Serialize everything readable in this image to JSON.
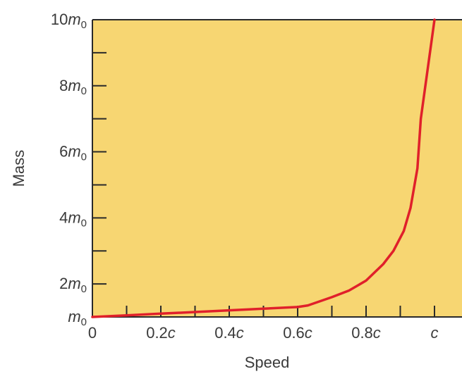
{
  "chart_data": {
    "type": "line",
    "title": "",
    "xlabel": "Speed",
    "ylabel": "Mass",
    "xlim": [
      0,
      1.05
    ],
    "ylim": [
      1,
      10
    ],
    "x_ticks": [
      {
        "value": 0,
        "label": "0",
        "num": "0",
        "sub": "",
        "italic": ""
      },
      {
        "value": 0.2,
        "label": "0.2c",
        "num": "0.2",
        "sub": "",
        "italic": "c"
      },
      {
        "value": 0.4,
        "label": "0.4c",
        "num": "0.4",
        "sub": "",
        "italic": "c"
      },
      {
        "value": 0.6,
        "label": "0.6c",
        "num": "0.6",
        "sub": "",
        "italic": "c"
      },
      {
        "value": 0.8,
        "label": "0.8c",
        "num": "0.8",
        "sub": "",
        "italic": "c"
      },
      {
        "value": 1.0,
        "label": "c",
        "num": "",
        "sub": "",
        "italic": "c"
      }
    ],
    "x_minor_ticks": [
      0.1,
      0.3,
      0.5,
      0.7,
      0.9
    ],
    "y_ticks": [
      {
        "value": 1,
        "label": "m0",
        "num": "",
        "italic": "m",
        "sub": "0"
      },
      {
        "value": 2,
        "label": "2m0",
        "num": "2",
        "italic": "m",
        "sub": "0"
      },
      {
        "value": 4,
        "label": "4m0",
        "num": "4",
        "italic": "m",
        "sub": "0"
      },
      {
        "value": 6,
        "label": "6m0",
        "num": "6",
        "italic": "m",
        "sub": "0"
      },
      {
        "value": 8,
        "label": "8m0",
        "num": "8",
        "italic": "m",
        "sub": "0"
      },
      {
        "value": 10,
        "label": "10m0",
        "num": "10",
        "italic": "m",
        "sub": "0"
      }
    ],
    "y_minor_ticks": [
      3,
      5,
      7,
      9
    ],
    "series": [
      {
        "color": "#e0202a",
        "x": [
          0,
          0.1,
          0.2,
          0.3,
          0.4,
          0.5,
          0.6,
          0.63,
          0.7,
          0.75,
          0.8,
          0.85,
          0.88,
          0.91,
          0.93,
          0.95,
          0.96,
          1.0
        ],
        "y": [
          1.0,
          1.05,
          1.1,
          1.15,
          1.2,
          1.25,
          1.3,
          1.35,
          1.6,
          1.8,
          2.1,
          2.6,
          3.0,
          3.6,
          4.3,
          5.5,
          7.0,
          10.0
        ]
      }
    ],
    "colors": {
      "plot_background": "#f7d672",
      "axis": "#2a2a2a",
      "curve": "#e0202a"
    },
    "grid": false,
    "legend": "none"
  }
}
